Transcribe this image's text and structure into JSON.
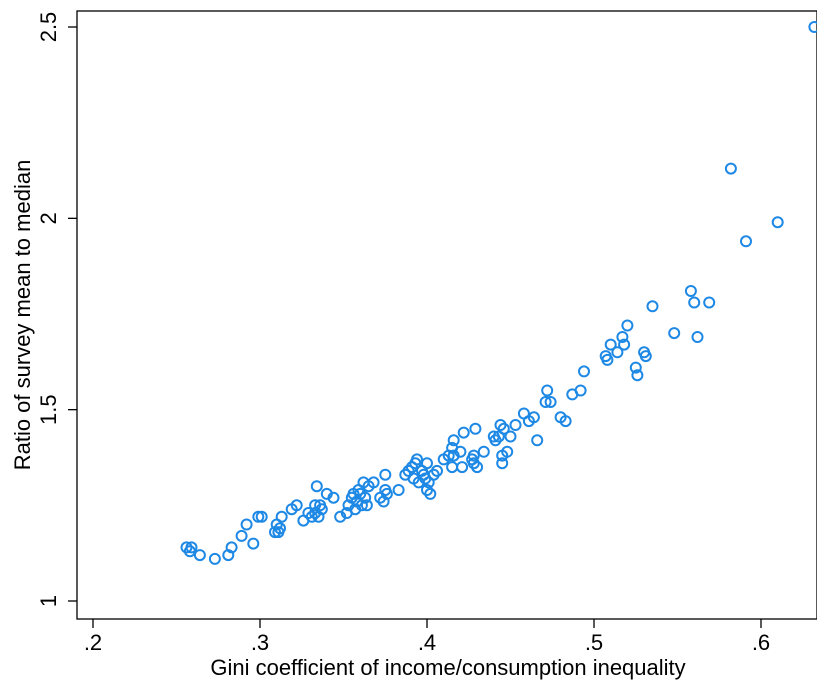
{
  "chart_data": {
    "type": "scatter",
    "title": "",
    "xlabel": "Gini coefficient of income/consumption inequality",
    "ylabel": "Ratio of survey mean to median",
    "xlim": [
      0.2,
      0.635
    ],
    "ylim": [
      1.0,
      2.5
    ],
    "xticks": [
      0.2,
      0.3,
      0.4,
      0.5,
      0.6
    ],
    "xtick_labels": [
      ".2",
      ".3",
      ".4",
      ".5",
      ".6"
    ],
    "yticks": [
      1.0,
      1.5,
      2.0,
      2.5
    ],
    "ytick_labels": [
      "1",
      "1.5",
      "2",
      "2.5"
    ],
    "grid": false,
    "legend": "none",
    "marker": "hollow-circle",
    "marker_color": "#1e88e5",
    "x": [
      0.256,
      0.258,
      0.259,
      0.264,
      0.273,
      0.281,
      0.283,
      0.289,
      0.292,
      0.296,
      0.299,
      0.301,
      0.309,
      0.31,
      0.311,
      0.312,
      0.313,
      0.319,
      0.322,
      0.326,
      0.329,
      0.331,
      0.333,
      0.333,
      0.334,
      0.335,
      0.336,
      0.337,
      0.34,
      0.344,
      0.348,
      0.352,
      0.353,
      0.355,
      0.356,
      0.357,
      0.358,
      0.359,
      0.36,
      0.361,
      0.362,
      0.363,
      0.364,
      0.365,
      0.368,
      0.372,
      0.374,
      0.375,
      0.375,
      0.376,
      0.383,
      0.387,
      0.389,
      0.391,
      0.392,
      0.393,
      0.394,
      0.395,
      0.397,
      0.398,
      0.399,
      0.4,
      0.4,
      0.401,
      0.402,
      0.404,
      0.406,
      0.41,
      0.413,
      0.415,
      0.415,
      0.416,
      0.416,
      0.42,
      0.421,
      0.422,
      0.427,
      0.428,
      0.428,
      0.429,
      0.43,
      0.434,
      0.44,
      0.441,
      0.443,
      0.444,
      0.445,
      0.445,
      0.446,
      0.448,
      0.45,
      0.453,
      0.458,
      0.461,
      0.464,
      0.466,
      0.471,
      0.472,
      0.474,
      0.48,
      0.483,
      0.487,
      0.492,
      0.494,
      0.507,
      0.508,
      0.51,
      0.514,
      0.517,
      0.518,
      0.52,
      0.525,
      0.526,
      0.53,
      0.531,
      0.535,
      0.548,
      0.558,
      0.56,
      0.562,
      0.569,
      0.582,
      0.591,
      0.61,
      0.632
    ],
    "y": [
      1.14,
      1.13,
      1.14,
      1.12,
      1.11,
      1.12,
      1.14,
      1.17,
      1.2,
      1.15,
      1.22,
      1.22,
      1.18,
      1.2,
      1.18,
      1.19,
      1.22,
      1.24,
      1.25,
      1.21,
      1.23,
      1.22,
      1.23,
      1.25,
      1.3,
      1.22,
      1.25,
      1.24,
      1.28,
      1.27,
      1.22,
      1.23,
      1.25,
      1.27,
      1.28,
      1.24,
      1.26,
      1.29,
      1.28,
      1.25,
      1.31,
      1.27,
      1.25,
      1.3,
      1.31,
      1.27,
      1.26,
      1.33,
      1.29,
      1.28,
      1.29,
      1.33,
      1.34,
      1.35,
      1.32,
      1.36,
      1.37,
      1.31,
      1.34,
      1.33,
      1.32,
      1.36,
      1.29,
      1.31,
      1.28,
      1.33,
      1.34,
      1.37,
      1.38,
      1.35,
      1.4,
      1.38,
      1.42,
      1.39,
      1.35,
      1.44,
      1.37,
      1.38,
      1.36,
      1.45,
      1.35,
      1.39,
      1.43,
      1.42,
      1.43,
      1.46,
      1.36,
      1.38,
      1.45,
      1.39,
      1.43,
      1.46,
      1.49,
      1.47,
      1.48,
      1.42,
      1.52,
      1.55,
      1.52,
      1.48,
      1.47,
      1.54,
      1.55,
      1.6,
      1.64,
      1.63,
      1.67,
      1.65,
      1.69,
      1.67,
      1.72,
      1.61,
      1.59,
      1.65,
      1.64,
      1.77,
      1.7,
      1.81,
      1.78,
      1.69,
      1.78,
      2.13,
      1.94,
      1.99,
      2.5
    ]
  }
}
